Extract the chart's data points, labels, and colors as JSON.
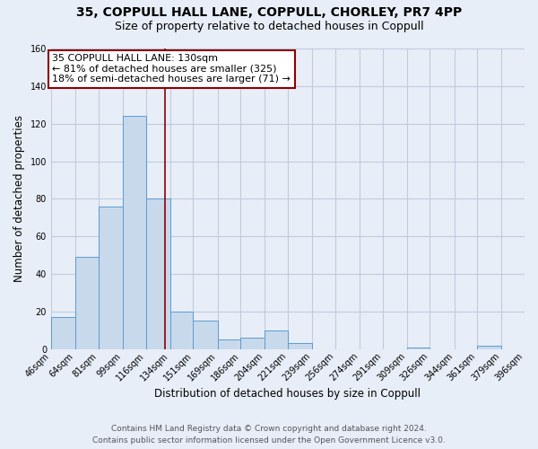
{
  "title": "35, COPPULL HALL LANE, COPPULL, CHORLEY, PR7 4PP",
  "subtitle": "Size of property relative to detached houses in Coppull",
  "xlabel": "Distribution of detached houses by size in Coppull",
  "ylabel": "Number of detached properties",
  "footer_line1": "Contains HM Land Registry data © Crown copyright and database right 2024.",
  "footer_line2": "Contains public sector information licensed under the Open Government Licence v3.0.",
  "bin_edges": [
    46,
    64,
    81,
    99,
    116,
    134,
    151,
    169,
    186,
    204,
    221,
    239,
    256,
    274,
    291,
    309,
    326,
    344,
    361,
    379,
    396
  ],
  "bin_labels": [
    "46sqm",
    "64sqm",
    "81sqm",
    "99sqm",
    "116sqm",
    "134sqm",
    "151sqm",
    "169sqm",
    "186sqm",
    "204sqm",
    "221sqm",
    "239sqm",
    "256sqm",
    "274sqm",
    "291sqm",
    "309sqm",
    "326sqm",
    "344sqm",
    "361sqm",
    "379sqm",
    "396sqm"
  ],
  "counts": [
    17,
    49,
    76,
    124,
    80,
    20,
    15,
    5,
    6,
    10,
    3,
    0,
    0,
    0,
    0,
    1,
    0,
    0,
    2,
    0
  ],
  "bar_facecolor": "#c8d9eb",
  "bar_edgecolor": "#5b9bd5",
  "property_line_x": 130,
  "property_line_color": "#8b0000",
  "annotation_text_line1": "35 COPPULL HALL LANE: 130sqm",
  "annotation_text_line2": "← 81% of detached houses are smaller (325)",
  "annotation_text_line3": "18% of semi-detached houses are larger (71) →",
  "annotation_box_edgecolor": "#8b0000",
  "annotation_box_facecolor": "#ffffff",
  "ylim": [
    0,
    160
  ],
  "xlim_min": 46,
  "xlim_max": 396,
  "background_color": "#e8eef8",
  "plot_background_color": "#e8eef8",
  "grid_color": "#c0cbdc",
  "title_fontsize": 10,
  "subtitle_fontsize": 9,
  "axis_label_fontsize": 8.5,
  "tick_fontsize": 7,
  "footer_fontsize": 6.5
}
